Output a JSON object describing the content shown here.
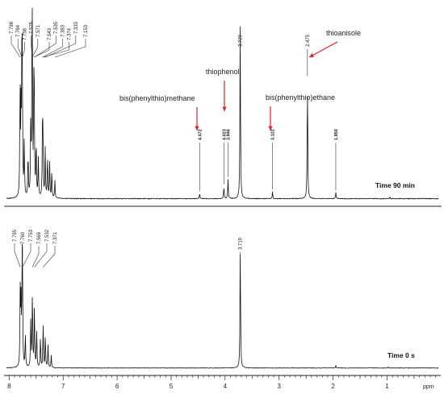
{
  "chart_data": {
    "type": "line",
    "x_axis": {
      "ticks": [
        8,
        7,
        6,
        5,
        4,
        3,
        2,
        1
      ],
      "unit": "ppm",
      "range": [
        8.05,
        0.05
      ],
      "reversed": true
    },
    "panels": [
      {
        "id": "top",
        "label": "Time 90 min",
        "peak_labels": [
          {
            "ppm": 7.798,
            "text": "7.798"
          },
          {
            "ppm": 7.764,
            "text": "7.764"
          },
          {
            "ppm": 7.756,
            "text": "7.756"
          },
          {
            "ppm": 7.576,
            "text": "7.576"
          },
          {
            "ppm": 7.571,
            "text": "7.571"
          },
          {
            "ppm": 7.543,
            "text": "7.543"
          },
          {
            "ppm": 7.535,
            "text": "7.535"
          },
          {
            "ppm": 7.383,
            "text": "7.383"
          },
          {
            "ppm": 7.374,
            "text": "7.374"
          },
          {
            "ppm": 7.333,
            "text": "7.333"
          },
          {
            "ppm": 7.153,
            "text": "7.153"
          },
          {
            "ppm": 4.472,
            "text": "4.472",
            "bold": true
          },
          {
            "ppm": 4.023,
            "text": "4.023",
            "bold": true
          },
          {
            "ppm": 3.946,
            "text": "3.946",
            "bold": true
          },
          {
            "ppm": 3.72,
            "text": "3.720"
          },
          {
            "ppm": 3.122,
            "text": "3.122",
            "bold": true
          },
          {
            "ppm": 2.475,
            "text": "2.475"
          },
          {
            "ppm": 1.95,
            "text": "1.950",
            "bold": true
          }
        ],
        "annotations": [
          {
            "text": "thioanisole",
            "ppm": 2.475
          },
          {
            "text": "thiophenol",
            "ppm": 3.946
          },
          {
            "text": "bis(phenylthio)methane",
            "ppm": 4.472
          },
          {
            "text": "bis(phenylthio)ethane",
            "ppm": 3.122
          }
        ],
        "peaks": [
          {
            "ppm": 7.798,
            "height": 0.62
          },
          {
            "ppm": 7.78,
            "height": 0.45
          },
          {
            "ppm": 7.764,
            "height": 0.7
          },
          {
            "ppm": 7.756,
            "height": 0.58
          },
          {
            "ppm": 7.72,
            "height": 0.3
          },
          {
            "ppm": 7.65,
            "height": 0.25
          },
          {
            "ppm": 7.6,
            "height": 0.4
          },
          {
            "ppm": 7.576,
            "height": 0.66
          },
          {
            "ppm": 7.571,
            "height": 0.6
          },
          {
            "ppm": 7.543,
            "height": 0.5
          },
          {
            "ppm": 7.535,
            "height": 0.46
          },
          {
            "ppm": 7.5,
            "height": 0.32
          },
          {
            "ppm": 7.46,
            "height": 0.22
          },
          {
            "ppm": 7.383,
            "height": 0.36
          },
          {
            "ppm": 7.374,
            "height": 0.33
          },
          {
            "ppm": 7.333,
            "height": 0.28
          },
          {
            "ppm": 7.29,
            "height": 0.24
          },
          {
            "ppm": 7.25,
            "height": 0.2
          },
          {
            "ppm": 7.21,
            "height": 0.16
          },
          {
            "ppm": 7.153,
            "height": 0.1
          },
          {
            "ppm": 4.472,
            "height": 0.03
          },
          {
            "ppm": 4.023,
            "height": 0.07
          },
          {
            "ppm": 3.946,
            "height": 0.11
          },
          {
            "ppm": 3.72,
            "height": 1.0
          },
          {
            "ppm": 3.122,
            "height": 0.04
          },
          {
            "ppm": 2.475,
            "height": 0.68
          },
          {
            "ppm": 1.95,
            "height": 0.035
          },
          {
            "ppm": 0.95,
            "height": 0.01
          }
        ]
      },
      {
        "id": "bottom",
        "label": "Time 0 s",
        "peak_labels": [
          {
            "ppm": 7.795,
            "text": "7.795"
          },
          {
            "ppm": 7.76,
            "text": "7.760"
          },
          {
            "ppm": 7.753,
            "text": "7.753"
          },
          {
            "ppm": 7.569,
            "text": "7.569"
          },
          {
            "ppm": 7.532,
            "text": "7.532"
          },
          {
            "ppm": 7.371,
            "text": "7.371"
          },
          {
            "ppm": 3.719,
            "text": "3.719"
          }
        ],
        "annotations": [],
        "peaks": [
          {
            "ppm": 7.795,
            "height": 0.6
          },
          {
            "ppm": 7.78,
            "height": 0.48
          },
          {
            "ppm": 7.76,
            "height": 0.66
          },
          {
            "ppm": 7.753,
            "height": 0.56
          },
          {
            "ppm": 7.7,
            "height": 0.25
          },
          {
            "ppm": 7.6,
            "height": 0.38
          },
          {
            "ppm": 7.569,
            "height": 0.62
          },
          {
            "ppm": 7.532,
            "height": 0.5
          },
          {
            "ppm": 7.49,
            "height": 0.28
          },
          {
            "ppm": 7.42,
            "height": 0.24
          },
          {
            "ppm": 7.371,
            "height": 0.34
          },
          {
            "ppm": 7.33,
            "height": 0.26
          },
          {
            "ppm": 7.28,
            "height": 0.18
          },
          {
            "ppm": 7.22,
            "height": 0.1
          },
          {
            "ppm": 3.719,
            "height": 1.0
          },
          {
            "ppm": 1.95,
            "height": 0.02
          },
          {
            "ppm": 0.98,
            "height": 0.008
          }
        ]
      }
    ],
    "colors": {
      "spectrum": "#111111",
      "arrow": "#e02020",
      "axis": "#222222"
    }
  }
}
